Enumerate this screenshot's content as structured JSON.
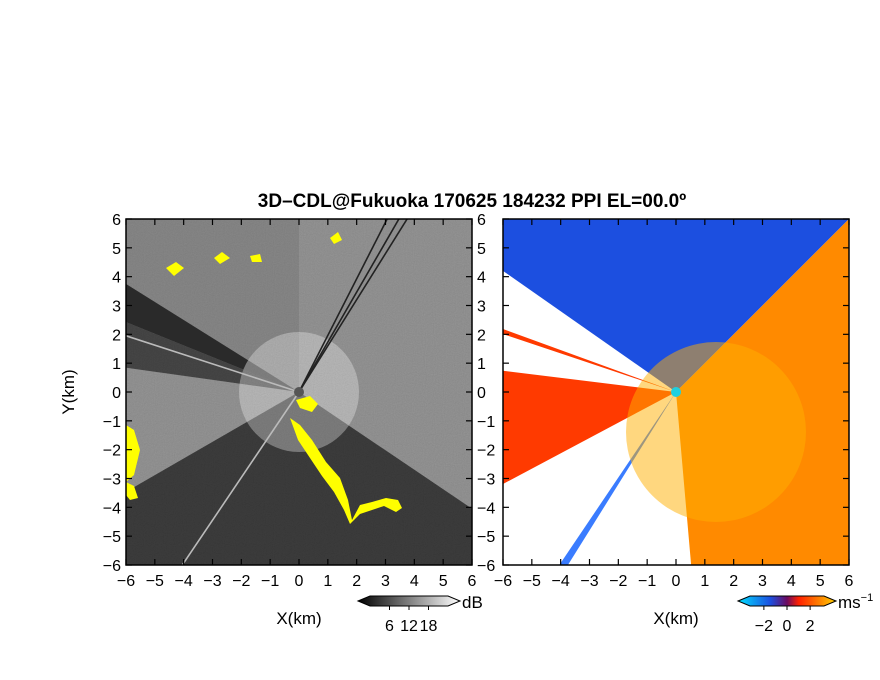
{
  "figure": {
    "title": "3D–CDL@Fukuoka 170625 184232 PPI EL=00.0º"
  },
  "colors": {
    "background_dark": "#2a2a2a",
    "echo_highlight": "#ffff00",
    "doppler_negative": "#1c4fe0",
    "doppler_positive": "#ff6a00",
    "radar_center": "#20d0e0"
  },
  "chart_data": [
    {
      "type": "heatmap",
      "panel": "left",
      "quantity": "reflectivity",
      "x_label": "X(km)",
      "y_label": "Y(km)",
      "xlim": [
        -6,
        6
      ],
      "ylim": [
        -6,
        6
      ],
      "xticks": [
        -6,
        -5,
        -4,
        -3,
        -2,
        -1,
        0,
        1,
        2,
        3,
        4,
        5,
        6
      ],
      "yticks": [
        -6,
        -5,
        -4,
        -3,
        -2,
        -1,
        0,
        1,
        2,
        3,
        4,
        5,
        6
      ],
      "colorbar": {
        "unit": "dB",
        "ticks": [
          6,
          12,
          18
        ],
        "colors": [
          "#000000",
          "#ffffff"
        ]
      },
      "sectors": [
        {
          "from_deg": -34,
          "to_deg": 90,
          "level": 0.62
        },
        {
          "from_deg": 90,
          "to_deg": 148,
          "level": 0.55
        },
        {
          "from_deg": 158,
          "to_deg": 172,
          "level": 0.18
        },
        {
          "from_deg": 172,
          "to_deg": 210,
          "level": 0.62
        },
        {
          "from_deg": 210,
          "to_deg": 326,
          "level": 0.12
        }
      ],
      "radial_lines_deg": [
        58,
        60,
        63,
        162,
        236
      ]
    },
    {
      "type": "heatmap",
      "panel": "right",
      "quantity": "doppler velocity",
      "x_label": "X(km)",
      "y_label": "",
      "xlim": [
        -6,
        6
      ],
      "ylim": [
        -6,
        6
      ],
      "xticks": [
        -6,
        -5,
        -4,
        -3,
        -2,
        -1,
        0,
        1,
        2,
        3,
        4,
        5,
        6
      ],
      "yticks": [
        -6,
        -5,
        -4,
        -3,
        -2,
        -1,
        0,
        1,
        2,
        3,
        4,
        5,
        6
      ],
      "colorbar": {
        "unit": "ms",
        "unit_exponent": "−1",
        "ticks": [
          -2,
          0,
          2
        ],
        "colors": [
          "#00c8ff",
          "#1c4fe0",
          "#ff2000",
          "#ffd000"
        ]
      },
      "sectors": [
        {
          "from_deg": 45,
          "to_deg": 145,
          "value": -2
        },
        {
          "from_deg": -85,
          "to_deg": 45,
          "value": 1.5
        },
        {
          "from_deg": 160,
          "to_deg": 161.5,
          "value": 1
        },
        {
          "from_deg": 173,
          "to_deg": 208,
          "value": 1
        },
        {
          "from_deg": 236,
          "to_deg": 238,
          "value": -1
        }
      ]
    }
  ]
}
